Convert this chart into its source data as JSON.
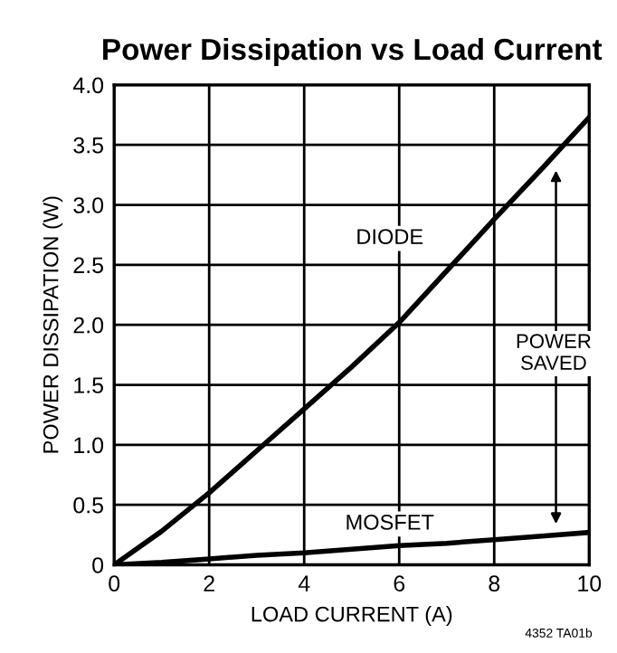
{
  "chart_data": {
    "type": "line",
    "title": "Power Dissipation vs Load Current",
    "xlabel": "LOAD CURRENT (A)",
    "ylabel": "POWER DISSIPATION (W)",
    "x": [
      0,
      1,
      2,
      3,
      4,
      5,
      6,
      7,
      8,
      9,
      10
    ],
    "series": [
      {
        "name": "DIODE",
        "color": "#000000",
        "values": [
          0,
          0.28,
          0.6,
          0.95,
          1.3,
          1.65,
          2.02,
          2.45,
          2.88,
          3.3,
          3.73
        ]
      },
      {
        "name": "MOSFET",
        "color": "#000000",
        "values": [
          0,
          0.02,
          0.05,
          0.08,
          0.1,
          0.13,
          0.16,
          0.18,
          0.21,
          0.24,
          0.27
        ]
      }
    ],
    "xlim": [
      0,
      10
    ],
    "xticks": [
      0,
      2,
      4,
      6,
      8,
      10
    ],
    "ylim": [
      0,
      4
    ],
    "yticks": [
      0,
      {
        "value": 0.5,
        "label": "0.5"
      },
      {
        "value": 1,
        "label": "1.0"
      },
      {
        "value": 1.5,
        "label": "1.5"
      },
      {
        "value": 2,
        "label": "2.0"
      },
      {
        "value": 2.5,
        "label": "2.5"
      },
      {
        "value": 3,
        "label": "3.0"
      },
      {
        "value": 3.5,
        "label": "3.5"
      },
      {
        "value": 4,
        "label": "4.0"
      }
    ],
    "grid": true,
    "marker": "none",
    "line_style": "solid",
    "annotations": [
      "POWER\nSAVED",
      "4352 TA01b"
    ]
  }
}
